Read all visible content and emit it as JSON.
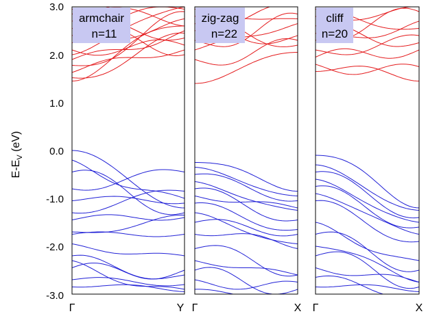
{
  "chart_data": [
    {
      "type": "line",
      "title": "",
      "label_line1": "armchair",
      "label_line2": "n=11",
      "x_tick_labels": [
        "Γ",
        "Y"
      ],
      "ylabel": "E-E",
      "ylabel_sub": "V",
      "ylabel_unit": " (eV)",
      "y_tick_labels": [
        "3.0",
        "2.0",
        "1.0",
        "0.0",
        "-1.0",
        "-2.0",
        "-3.0"
      ],
      "ylim": [
        -3.0,
        3.0
      ],
      "xlim": [
        0,
        1
      ],
      "grid": false,
      "conduction_bands": [
        {
          "name": "",
          "y0": 1.45,
          "y1": 2.6,
          "amp": 0.18,
          "ph": 0.0
        },
        {
          "name": "",
          "y0": 1.52,
          "y1": 2.45,
          "amp": -0.12,
          "ph": 0.2
        },
        {
          "name": "",
          "y0": 1.63,
          "y1": 2.1,
          "amp": 0.25,
          "ph": 0.4
        },
        {
          "name": "",
          "y0": 1.78,
          "y1": 2.9,
          "amp": -0.2,
          "ph": 0.1
        },
        {
          "name": "",
          "y0": 1.9,
          "y1": 2.5,
          "amp": 0.3,
          "ph": 0.6
        },
        {
          "name": "",
          "y0": 2.0,
          "y1": 3.0,
          "amp": 0.15,
          "ph": 0.3
        },
        {
          "name": "",
          "y0": 2.1,
          "y1": 2.2,
          "amp": -0.25,
          "ph": 0.5
        },
        {
          "name": "",
          "y0": 2.25,
          "y1": 2.75,
          "amp": 0.2,
          "ph": 0.8
        },
        {
          "name": "",
          "y0": 2.4,
          "y1": 2.0,
          "amp": 0.3,
          "ph": 0.2
        },
        {
          "name": "",
          "y0": 2.55,
          "y1": 2.95,
          "amp": -0.15,
          "ph": 0.7
        },
        {
          "name": "",
          "y0": 2.7,
          "y1": 2.35,
          "amp": 0.2,
          "ph": 0.4
        },
        {
          "name": "",
          "y0": 2.85,
          "y1": 3.1,
          "amp": 0.1,
          "ph": 0.1
        },
        {
          "name": "",
          "y0": 2.95,
          "y1": 2.6,
          "amp": -0.2,
          "ph": 0.9
        }
      ],
      "valence_bands": [
        {
          "name": "",
          "y0": 0.0,
          "y1": -1.2,
          "amp": 0.0,
          "ph": 0.0
        },
        {
          "name": "",
          "y0": -0.2,
          "y1": -1.0,
          "amp": -0.3,
          "ph": 0.3
        },
        {
          "name": "",
          "y0": -0.45,
          "y1": -1.3,
          "amp": 0.2,
          "ph": 0.5
        },
        {
          "name": "",
          "y0": -0.8,
          "y1": -0.45,
          "amp": -0.15,
          "ph": 0.6
        },
        {
          "name": "",
          "y0": -1.05,
          "y1": -1.1,
          "amp": 0.12,
          "ph": 0.2
        },
        {
          "name": "",
          "y0": -1.3,
          "y1": -0.85,
          "amp": -0.1,
          "ph": 0.7
        },
        {
          "name": "",
          "y0": -1.45,
          "y1": -1.4,
          "amp": 0.15,
          "ph": 0.4
        },
        {
          "name": "",
          "y0": -1.7,
          "y1": -1.35,
          "amp": -0.1,
          "ph": 0.1
        },
        {
          "name": "",
          "y0": -1.75,
          "y1": -1.75,
          "amp": 0.1,
          "ph": 0.5
        },
        {
          "name": "",
          "y0": -1.95,
          "y1": -2.2,
          "amp": -0.15,
          "ph": 0.3
        },
        {
          "name": "",
          "y0": -2.2,
          "y1": -2.6,
          "amp": 0.2,
          "ph": 0.8
        },
        {
          "name": "",
          "y0": -2.3,
          "y1": -2.9,
          "amp": -0.25,
          "ph": 0.2
        },
        {
          "name": "",
          "y0": -2.45,
          "y1": -2.5,
          "amp": 0.3,
          "ph": 0.6
        },
        {
          "name": "",
          "y0": -2.7,
          "y1": -2.8,
          "amp": 0.1,
          "ph": 0.4
        },
        {
          "name": "",
          "y0": -2.85,
          "y1": -2.95,
          "amp": -0.1,
          "ph": 0.9
        }
      ]
    },
    {
      "type": "line",
      "title": "",
      "label_line1": "zig-zag",
      "label_line2": "n=22",
      "x_tick_labels": [
        "Γ",
        "X"
      ],
      "ylim": [
        -3.0,
        3.0
      ],
      "xlim": [
        0,
        1
      ],
      "grid": false,
      "conduction_bands": [
        {
          "name": "",
          "y0": 1.4,
          "y1": 2.05,
          "amp": 0.05,
          "ph": 0.0
        },
        {
          "name": "",
          "y0": 1.9,
          "y1": 2.3,
          "amp": -0.25,
          "ph": 0.3
        },
        {
          "name": "",
          "y0": 2.1,
          "y1": 2.65,
          "amp": 0.2,
          "ph": 0.5
        },
        {
          "name": "",
          "y0": 2.3,
          "y1": 2.85,
          "amp": -0.3,
          "ph": 0.2
        },
        {
          "name": "",
          "y0": 2.5,
          "y1": 2.4,
          "amp": 0.25,
          "ph": 0.7
        },
        {
          "name": "",
          "y0": 2.65,
          "y1": 3.0,
          "amp": -0.2,
          "ph": 0.4
        },
        {
          "name": "",
          "y0": 2.8,
          "y1": 2.2,
          "amp": 0.15,
          "ph": 0.6
        },
        {
          "name": "",
          "y0": 2.95,
          "y1": 2.75,
          "amp": -0.1,
          "ph": 0.1
        }
      ],
      "valence_bands": [
        {
          "name": "",
          "y0": -0.25,
          "y1": -0.85,
          "amp": 0.1,
          "ph": 0.0
        },
        {
          "name": "",
          "y0": -0.35,
          "y1": -0.95,
          "amp": -0.05,
          "ph": 0.2
        },
        {
          "name": "",
          "y0": -0.5,
          "y1": -1.05,
          "amp": 0.08,
          "ph": 0.4
        },
        {
          "name": "",
          "y0": -0.65,
          "y1": -1.25,
          "amp": -0.1,
          "ph": 0.3
        },
        {
          "name": "",
          "y0": -0.8,
          "y1": -1.45,
          "amp": 0.12,
          "ph": 0.6
        },
        {
          "name": "",
          "y0": -0.95,
          "y1": -1.2,
          "amp": -0.15,
          "ph": 0.5
        },
        {
          "name": "",
          "y0": -1.1,
          "y1": -1.65,
          "amp": 0.1,
          "ph": 0.7
        },
        {
          "name": "",
          "y0": -1.3,
          "y1": -1.95,
          "amp": -0.1,
          "ph": 0.2
        },
        {
          "name": "",
          "y0": -1.5,
          "y1": -1.75,
          "amp": 0.15,
          "ph": 0.4
        },
        {
          "name": "",
          "y0": -1.75,
          "y1": -2.05,
          "amp": -0.2,
          "ph": 0.8
        },
        {
          "name": "",
          "y0": -2.05,
          "y1": -2.6,
          "amp": 0.2,
          "ph": 0.3
        },
        {
          "name": "",
          "y0": -2.3,
          "y1": -2.6,
          "amp": -0.15,
          "ph": 0.5
        },
        {
          "name": "",
          "y0": -2.5,
          "y1": -2.9,
          "amp": 0.25,
          "ph": 0.6
        },
        {
          "name": "",
          "y0": -2.7,
          "y1": -2.75,
          "amp": -0.2,
          "ph": 0.2
        },
        {
          "name": "",
          "y0": -2.9,
          "y1": -3.0,
          "amp": 0.1,
          "ph": 0.9
        }
      ]
    },
    {
      "type": "line",
      "title": "",
      "label_line1": "cliff",
      "label_line2": "n=20",
      "x_tick_labels": [
        "Γ",
        "X"
      ],
      "ylim": [
        -3.0,
        3.0
      ],
      "xlim": [
        0,
        1
      ],
      "grid": false,
      "conduction_bands": [
        {
          "name": "",
          "y0": 1.65,
          "y1": 1.45,
          "amp": 0.2,
          "ph": 0.0
        },
        {
          "name": "",
          "y0": 1.8,
          "y1": 1.75,
          "amp": -0.25,
          "ph": 0.3
        },
        {
          "name": "",
          "y0": 1.95,
          "y1": 2.1,
          "amp": 0.3,
          "ph": 0.5
        },
        {
          "name": "",
          "y0": 2.1,
          "y1": 2.4,
          "amp": -0.2,
          "ph": 0.2
        },
        {
          "name": "",
          "y0": 2.3,
          "y1": 2.7,
          "amp": 0.25,
          "ph": 0.7
        },
        {
          "name": "",
          "y0": 2.45,
          "y1": 2.9,
          "amp": -0.3,
          "ph": 0.4
        },
        {
          "name": "",
          "y0": 2.6,
          "y1": 2.25,
          "amp": 0.2,
          "ph": 0.6
        },
        {
          "name": "",
          "y0": 2.8,
          "y1": 3.0,
          "amp": -0.15,
          "ph": 0.1
        },
        {
          "name": "",
          "y0": 2.95,
          "y1": 2.55,
          "amp": 0.1,
          "ph": 0.8
        }
      ],
      "valence_bands": [
        {
          "name": "",
          "y0": -0.1,
          "y1": -1.2,
          "amp": 0.15,
          "ph": 0.0
        },
        {
          "name": "",
          "y0": -0.3,
          "y1": -1.25,
          "amp": -0.05,
          "ph": 0.2
        },
        {
          "name": "",
          "y0": -0.45,
          "y1": -1.4,
          "amp": 0.1,
          "ph": 0.4
        },
        {
          "name": "",
          "y0": -0.6,
          "y1": -1.5,
          "amp": -0.1,
          "ph": 0.3
        },
        {
          "name": "",
          "y0": -0.75,
          "y1": -1.6,
          "amp": 0.12,
          "ph": 0.6
        },
        {
          "name": "",
          "y0": -0.9,
          "y1": -1.75,
          "amp": -0.12,
          "ph": 0.5
        },
        {
          "name": "",
          "y0": -1.05,
          "y1": -1.9,
          "amp": 0.1,
          "ph": 0.7
        },
        {
          "name": "",
          "y0": -1.5,
          "y1": -2.3,
          "amp": -0.2,
          "ph": 0.2
        },
        {
          "name": "",
          "y0": -1.75,
          "y1": -2.5,
          "amp": 0.2,
          "ph": 0.4
        },
        {
          "name": "",
          "y0": -2.0,
          "y1": -2.75,
          "amp": -0.15,
          "ph": 0.8
        },
        {
          "name": "",
          "y0": -2.2,
          "y1": -2.85,
          "amp": 0.25,
          "ph": 0.3
        },
        {
          "name": "",
          "y0": -2.45,
          "y1": -2.75,
          "amp": -0.2,
          "ph": 0.5
        },
        {
          "name": "",
          "y0": -2.65,
          "y1": -3.0,
          "amp": 0.15,
          "ph": 0.6
        },
        {
          "name": "",
          "y0": -2.85,
          "y1": -2.95,
          "amp": -0.1,
          "ph": 0.9
        }
      ]
    }
  ],
  "colors": {
    "conduction": "#e41a1c",
    "valence": "#1f1fd6",
    "label_box": "#c8c8f2",
    "axis": "#000000"
  }
}
